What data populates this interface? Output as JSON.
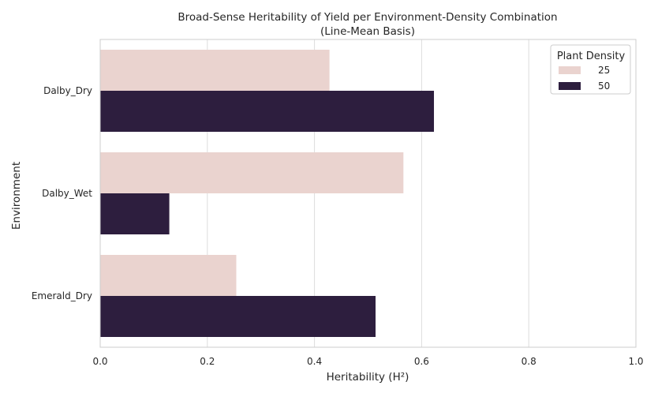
{
  "chart_data": {
    "type": "bar",
    "orientation": "horizontal",
    "title": "Broad-Sense Heritability of Yield per Environment-Density Combination",
    "subtitle": "(Line-Mean Basis)",
    "xlabel": "Heritability (H²)",
    "ylabel": "Environment",
    "xlim": [
      0,
      1.0
    ],
    "x_ticks": [
      "0.0",
      "0.2",
      "0.4",
      "0.6",
      "0.8",
      "1.0"
    ],
    "grid": "vertical",
    "categories": [
      "Dalby_Dry",
      "Dalby_Wet",
      "Emerald_Dry"
    ],
    "series": [
      {
        "name": "25",
        "color": "#ead3cf",
        "values": [
          0.428,
          0.566,
          0.254
        ]
      },
      {
        "name": "50",
        "color": "#2d1e3e",
        "values": [
          0.623,
          0.129,
          0.514
        ]
      }
    ],
    "legend": {
      "title": "Plant Density",
      "placement": "top-right"
    }
  }
}
